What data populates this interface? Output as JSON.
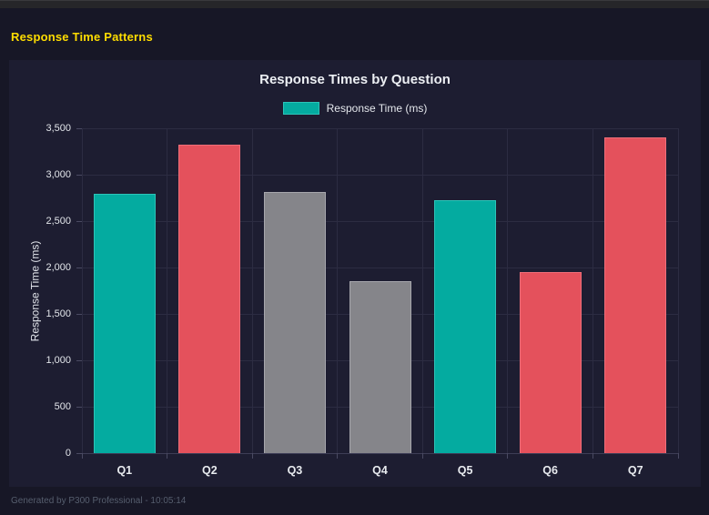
{
  "header": {
    "title": "Response Time Patterns"
  },
  "footer": {
    "text": "Generated by P300 Professional - 10:05:14"
  },
  "colors": {
    "accent_yellow": "#ffdd00",
    "teal": "#04aba0",
    "red": "#e4515c",
    "gray": "#85858a",
    "page_bg": "#171726",
    "card_bg": "#1d1d31",
    "grid": "#2c2c42",
    "text": "#eceff3",
    "muted_text": "#565e6e"
  },
  "chart_data": {
    "type": "bar",
    "title": "Response Times by Question",
    "legend": [
      {
        "label": "Response Time (ms)",
        "color": "#04aba0"
      }
    ],
    "legend_position": "top",
    "grid": true,
    "categories": [
      "Q1",
      "Q2",
      "Q3",
      "Q4",
      "Q5",
      "Q6",
      "Q7"
    ],
    "values": [
      2790,
      3320,
      2810,
      1850,
      2730,
      1950,
      3400
    ],
    "bar_colors": [
      "#04aba0",
      "#e4515c",
      "#85858a",
      "#85858a",
      "#04aba0",
      "#e4515c",
      "#e4515c"
    ],
    "bar_border_colors": [
      "#2cc4b8",
      "#ef6e79",
      "#a6a6ac",
      "#a6a6ac",
      "#2cc4b8",
      "#ef6e79",
      "#ef6e79"
    ],
    "xlabel": "",
    "ylabel": "Response Time (ms)",
    "ylim": [
      0,
      3500
    ],
    "ytick_step": 500,
    "ytick_labels": [
      "0",
      "500",
      "1,000",
      "1,500",
      "2,000",
      "2,500",
      "3,000",
      "3,500"
    ]
  }
}
